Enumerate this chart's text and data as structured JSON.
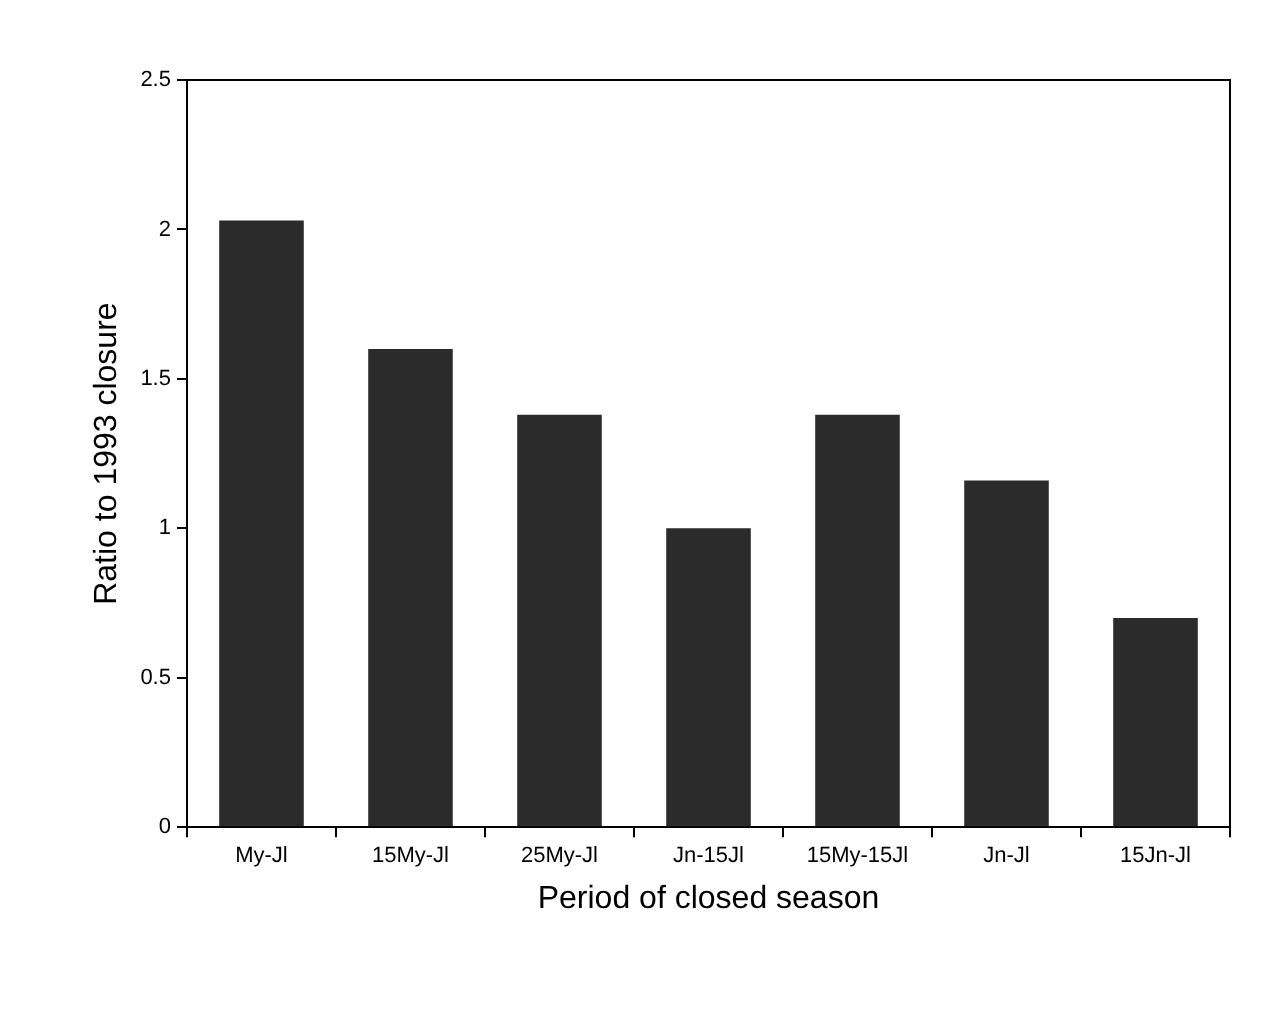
{
  "chart_data": {
    "type": "bar",
    "xlabel": "Period of closed season",
    "ylabel": "Ratio to 1993 closure",
    "categories": [
      "My-Jl",
      "15My-Jl",
      "25My-Jl",
      "Jn-15Jl",
      "15My-15Jl",
      "Jn-Jl",
      "15Jn-Jl"
    ],
    "values": [
      2.03,
      1.6,
      1.38,
      1.0,
      1.38,
      1.16,
      0.7
    ],
    "color": "#2b2b2b",
    "ylim": [
      0,
      2.5
    ],
    "yticks": [
      0,
      0.5,
      1,
      1.5,
      2,
      2.5
    ],
    "grid": false,
    "legend": false
  }
}
